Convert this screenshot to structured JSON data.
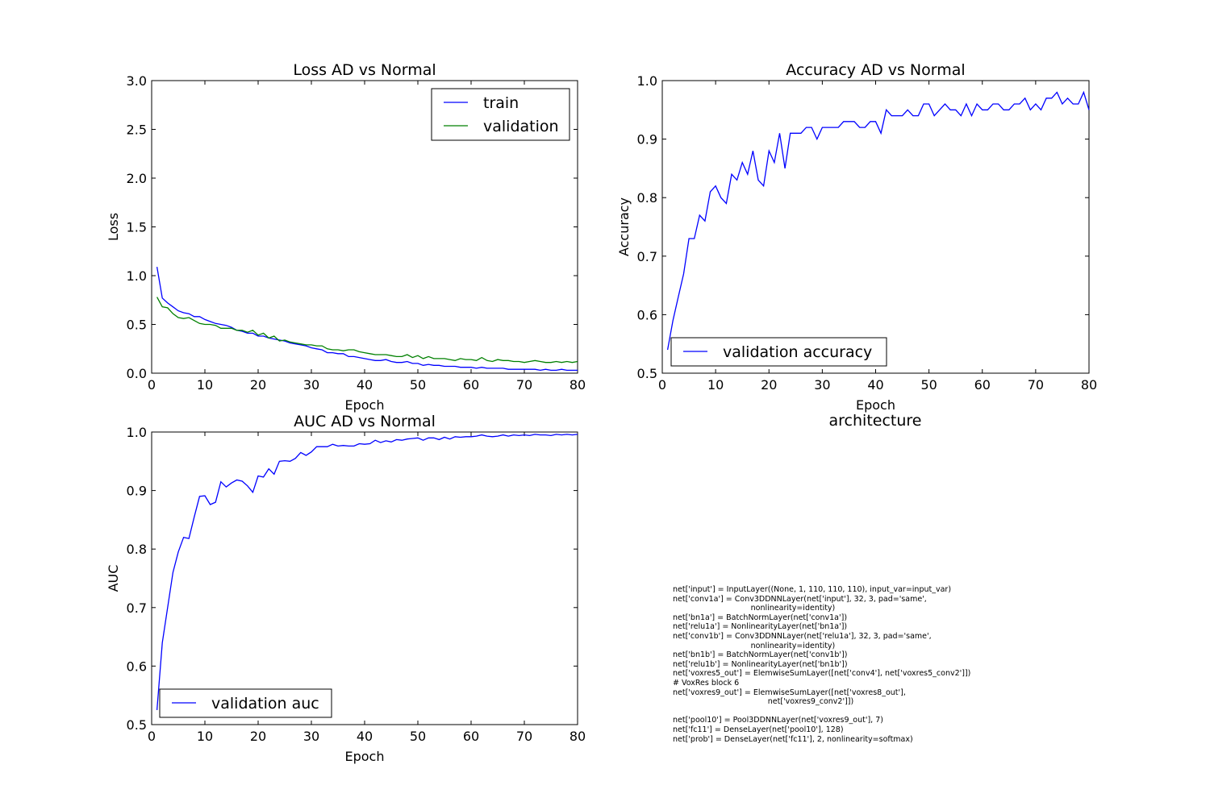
{
  "chart_data": [
    {
      "type": "line",
      "title": "Loss AD vs Normal",
      "xlabel": "Epoch",
      "ylabel": "Loss",
      "xlim": [
        0,
        80
      ],
      "ylim": [
        0,
        3.0
      ],
      "xticks": [
        "0",
        "10",
        "20",
        "30",
        "40",
        "50",
        "60",
        "70",
        "80"
      ],
      "yticks": [
        "0.0",
        "0.5",
        "1.0",
        "1.5",
        "2.0",
        "2.5",
        "3.0"
      ],
      "legend": "top-right",
      "grid": false,
      "colors": [
        "#0000ff",
        "#008000"
      ],
      "series": [
        {
          "name": "train",
          "x": [
            1,
            2,
            3,
            4,
            5,
            6,
            7,
            8,
            9,
            10,
            11,
            12,
            13,
            14,
            15,
            16,
            17,
            18,
            19,
            20,
            21,
            22,
            23,
            24,
            25,
            26,
            27,
            28,
            29,
            30,
            31,
            32,
            33,
            34,
            35,
            36,
            37,
            38,
            39,
            40,
            41,
            42,
            43,
            44,
            45,
            46,
            47,
            48,
            49,
            50,
            51,
            52,
            53,
            54,
            55,
            56,
            57,
            58,
            59,
            60,
            61,
            62,
            63,
            64,
            65,
            66,
            67,
            68,
            69,
            70,
            71,
            72,
            73,
            74,
            75,
            76,
            77,
            78,
            79,
            80
          ],
          "values": [
            1.09,
            0.77,
            0.72,
            0.68,
            0.64,
            0.62,
            0.61,
            0.58,
            0.58,
            0.55,
            0.53,
            0.51,
            0.5,
            0.49,
            0.47,
            0.44,
            0.43,
            0.41,
            0.41,
            0.38,
            0.38,
            0.36,
            0.35,
            0.34,
            0.33,
            0.31,
            0.3,
            0.29,
            0.28,
            0.26,
            0.25,
            0.24,
            0.21,
            0.21,
            0.2,
            0.2,
            0.17,
            0.17,
            0.16,
            0.15,
            0.14,
            0.13,
            0.13,
            0.14,
            0.12,
            0.11,
            0.11,
            0.12,
            0.1,
            0.1,
            0.08,
            0.09,
            0.08,
            0.08,
            0.07,
            0.07,
            0.07,
            0.06,
            0.06,
            0.06,
            0.05,
            0.06,
            0.05,
            0.05,
            0.05,
            0.05,
            0.04,
            0.04,
            0.04,
            0.04,
            0.04,
            0.04,
            0.03,
            0.04,
            0.03,
            0.03,
            0.04,
            0.03,
            0.03,
            0.03
          ]
        },
        {
          "name": "validation",
          "x": [
            1,
            2,
            3,
            4,
            5,
            6,
            7,
            8,
            9,
            10,
            11,
            12,
            13,
            14,
            15,
            16,
            17,
            18,
            19,
            20,
            21,
            22,
            23,
            24,
            25,
            26,
            27,
            28,
            29,
            30,
            31,
            32,
            33,
            34,
            35,
            36,
            37,
            38,
            39,
            40,
            41,
            42,
            43,
            44,
            45,
            46,
            47,
            48,
            49,
            50,
            51,
            52,
            53,
            54,
            55,
            56,
            57,
            58,
            59,
            60,
            61,
            62,
            63,
            64,
            65,
            66,
            67,
            68,
            69,
            70,
            71,
            72,
            73,
            74,
            75,
            76,
            77,
            78,
            79,
            80
          ],
          "values": [
            0.78,
            0.68,
            0.67,
            0.61,
            0.57,
            0.56,
            0.57,
            0.54,
            0.51,
            0.5,
            0.5,
            0.49,
            0.46,
            0.46,
            0.46,
            0.44,
            0.44,
            0.42,
            0.44,
            0.39,
            0.41,
            0.36,
            0.38,
            0.33,
            0.34,
            0.32,
            0.31,
            0.3,
            0.29,
            0.29,
            0.28,
            0.28,
            0.25,
            0.24,
            0.24,
            0.23,
            0.24,
            0.24,
            0.22,
            0.21,
            0.2,
            0.19,
            0.19,
            0.19,
            0.18,
            0.17,
            0.17,
            0.19,
            0.16,
            0.18,
            0.15,
            0.17,
            0.15,
            0.15,
            0.15,
            0.14,
            0.13,
            0.15,
            0.14,
            0.14,
            0.13,
            0.16,
            0.13,
            0.12,
            0.14,
            0.13,
            0.13,
            0.12,
            0.12,
            0.11,
            0.12,
            0.13,
            0.12,
            0.11,
            0.11,
            0.12,
            0.11,
            0.12,
            0.11,
            0.12
          ]
        }
      ]
    },
    {
      "type": "line",
      "title": "Accuracy AD vs Normal",
      "xlabel": "Epoch",
      "ylabel": "Accuracy",
      "xlim": [
        0,
        80
      ],
      "ylim": [
        0.5,
        1.0
      ],
      "xticks": [
        "0",
        "10",
        "20",
        "30",
        "40",
        "50",
        "60",
        "70",
        "80"
      ],
      "yticks": [
        "0.5",
        "0.6",
        "0.7",
        "0.8",
        "0.9",
        "1.0"
      ],
      "legend": "bottom-left",
      "grid": false,
      "colors": [
        "#0000ff"
      ],
      "series": [
        {
          "name": "validation accuracy",
          "x": [
            1,
            2,
            3,
            4,
            5,
            6,
            7,
            8,
            9,
            10,
            11,
            12,
            13,
            14,
            15,
            16,
            17,
            18,
            19,
            20,
            21,
            22,
            23,
            24,
            25,
            26,
            27,
            28,
            29,
            30,
            31,
            32,
            33,
            34,
            35,
            36,
            37,
            38,
            39,
            40,
            41,
            42,
            43,
            44,
            45,
            46,
            47,
            48,
            49,
            50,
            51,
            52,
            53,
            54,
            55,
            56,
            57,
            58,
            59,
            60,
            61,
            62,
            63,
            64,
            65,
            66,
            67,
            68,
            69,
            70,
            71,
            72,
            73,
            74,
            75,
            76,
            77,
            78,
            79,
            80
          ],
          "values": [
            0.54,
            0.59,
            0.63,
            0.67,
            0.73,
            0.73,
            0.77,
            0.76,
            0.81,
            0.82,
            0.8,
            0.79,
            0.84,
            0.83,
            0.86,
            0.84,
            0.88,
            0.83,
            0.82,
            0.88,
            0.86,
            0.91,
            0.85,
            0.91,
            0.91,
            0.91,
            0.92,
            0.92,
            0.9,
            0.92,
            0.92,
            0.92,
            0.92,
            0.93,
            0.93,
            0.93,
            0.92,
            0.92,
            0.93,
            0.93,
            0.91,
            0.95,
            0.94,
            0.94,
            0.94,
            0.95,
            0.94,
            0.94,
            0.96,
            0.96,
            0.94,
            0.95,
            0.96,
            0.95,
            0.95,
            0.94,
            0.96,
            0.94,
            0.96,
            0.95,
            0.95,
            0.96,
            0.96,
            0.95,
            0.95,
            0.96,
            0.96,
            0.97,
            0.95,
            0.96,
            0.95,
            0.97,
            0.97,
            0.98,
            0.96,
            0.97,
            0.96,
            0.96,
            0.98,
            0.95
          ]
        }
      ]
    },
    {
      "type": "line",
      "title": "AUC AD vs Normal",
      "xlabel": "Epoch",
      "ylabel": "AUC",
      "xlim": [
        0,
        80
      ],
      "ylim": [
        0.5,
        1.0
      ],
      "xticks": [
        "0",
        "10",
        "20",
        "30",
        "40",
        "50",
        "60",
        "70",
        "80"
      ],
      "yticks": [
        "0.5",
        "0.6",
        "0.7",
        "0.8",
        "0.9",
        "1.0"
      ],
      "legend": "bottom-left",
      "grid": false,
      "colors": [
        "#0000ff"
      ],
      "series": [
        {
          "name": "validation auc",
          "x": [
            1,
            2,
            3,
            4,
            5,
            6,
            7,
            8,
            9,
            10,
            11,
            12,
            13,
            14,
            15,
            16,
            17,
            18,
            19,
            20,
            21,
            22,
            23,
            24,
            25,
            26,
            27,
            28,
            29,
            30,
            31,
            32,
            33,
            34,
            35,
            36,
            37,
            38,
            39,
            40,
            41,
            42,
            43,
            44,
            45,
            46,
            47,
            48,
            49,
            50,
            51,
            52,
            53,
            54,
            55,
            56,
            57,
            58,
            59,
            60,
            61,
            62,
            63,
            64,
            65,
            66,
            67,
            68,
            69,
            70,
            71,
            72,
            73,
            74,
            75,
            76,
            77,
            78,
            79,
            80
          ],
          "values": [
            0.525,
            0.64,
            0.7,
            0.76,
            0.795,
            0.82,
            0.818,
            0.855,
            0.89,
            0.891,
            0.876,
            0.88,
            0.915,
            0.906,
            0.913,
            0.918,
            0.916,
            0.908,
            0.897,
            0.925,
            0.923,
            0.937,
            0.928,
            0.95,
            0.951,
            0.95,
            0.955,
            0.965,
            0.96,
            0.966,
            0.975,
            0.975,
            0.975,
            0.979,
            0.976,
            0.977,
            0.976,
            0.976,
            0.98,
            0.979,
            0.98,
            0.986,
            0.982,
            0.985,
            0.983,
            0.987,
            0.986,
            0.988,
            0.989,
            0.99,
            0.986,
            0.99,
            0.99,
            0.987,
            0.991,
            0.988,
            0.992,
            0.991,
            0.992,
            0.992,
            0.993,
            0.995,
            0.993,
            0.992,
            0.993,
            0.995,
            0.993,
            0.995,
            0.994,
            0.995,
            0.994,
            0.996,
            0.995,
            0.995,
            0.994,
            0.996,
            0.995,
            0.996,
            0.995,
            0.996
          ]
        }
      ]
    }
  ],
  "architecture": {
    "title": "architecture",
    "code": [
      "net['input'] = InputLayer((None, 1, 110, 110, 110), input_var=input_var)",
      "net['conv1a'] = Conv3DDNNLayer(net['input'], 32, 3, pad='same',",
      "                                nonlinearity=identity)",
      "net['bn1a'] = BatchNormLayer(net['conv1a'])",
      "net['relu1a'] = NonlinearityLayer(net['bn1a'])",
      "net['conv1b'] = Conv3DDNNLayer(net['relu1a'], 32, 3, pad='same',",
      "                                nonlinearity=identity)",
      "net['bn1b'] = BatchNormLayer(net['conv1b'])",
      "net['relu1b'] = NonlinearityLayer(net['bn1b'])",
      "net['voxres5_out'] = ElemwiseSumLayer([net['conv4'], net['voxres5_conv2']])",
      "# VoxRes block 6",
      "net['voxres9_out'] = ElemwiseSumLayer([net['voxres8_out'],",
      "                                       net['voxres9_conv2']])",
      "",
      "net['pool10'] = Pool3DDNNLayer(net['voxres9_out'], 7)",
      "net['fc11'] = DenseLayer(net['pool10'], 128)",
      "net['prob'] = DenseLayer(net['fc11'], 2, nonlinearity=softmax)"
    ]
  }
}
